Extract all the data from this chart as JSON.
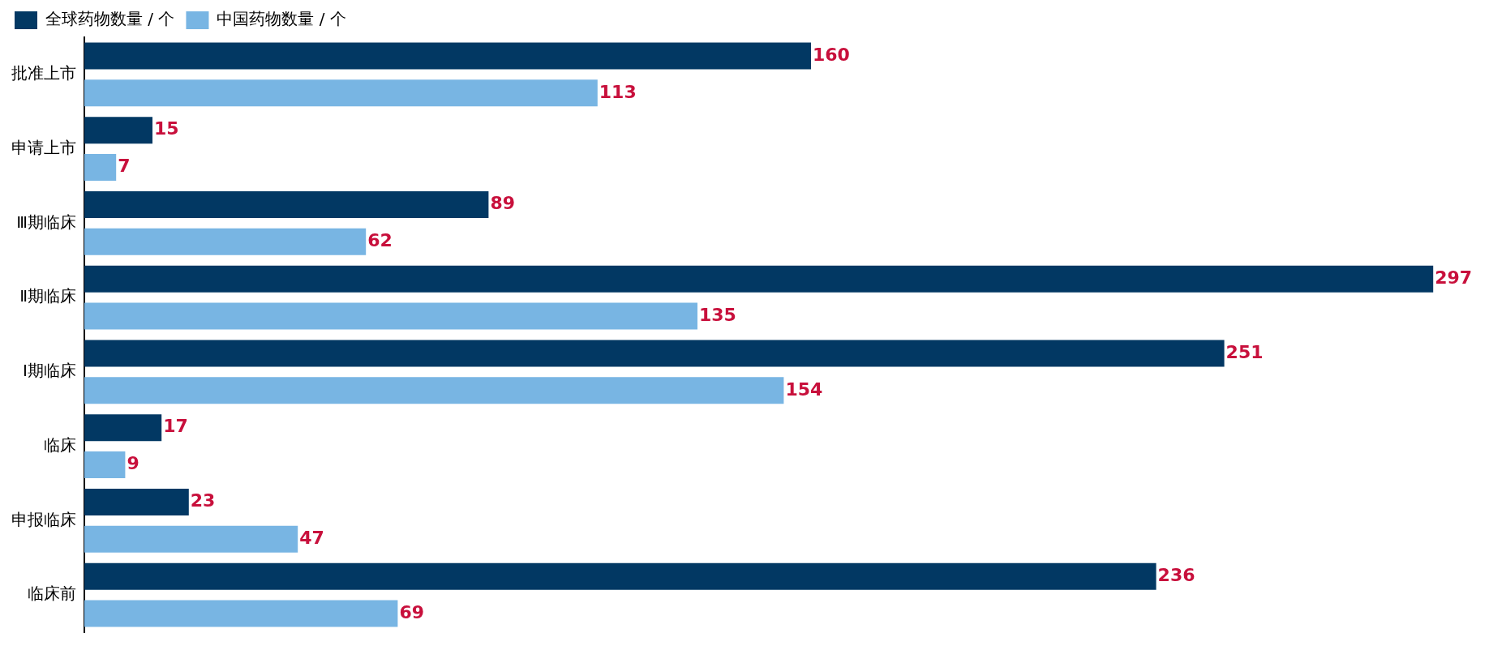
{
  "chart_data": {
    "type": "bar",
    "orientation": "horizontal",
    "categories": [
      "批准上市",
      "申请上市",
      "Ⅲ期临床",
      "Ⅱ期临床",
      "Ⅰ期临床",
      "临床",
      "申报临床",
      "临床前"
    ],
    "series": [
      {
        "name": "全球药物数量 / 个",
        "color": "#023863",
        "values": [
          160,
          15,
          89,
          297,
          251,
          17,
          23,
          236
        ]
      },
      {
        "name": "中国药物数量 / 个",
        "color": "#78b5e3",
        "values": [
          113,
          7,
          62,
          135,
          154,
          9,
          47,
          69
        ]
      }
    ],
    "data_labels": true,
    "grid": false,
    "legend": "top left",
    "tick_labels": "y"
  }
}
